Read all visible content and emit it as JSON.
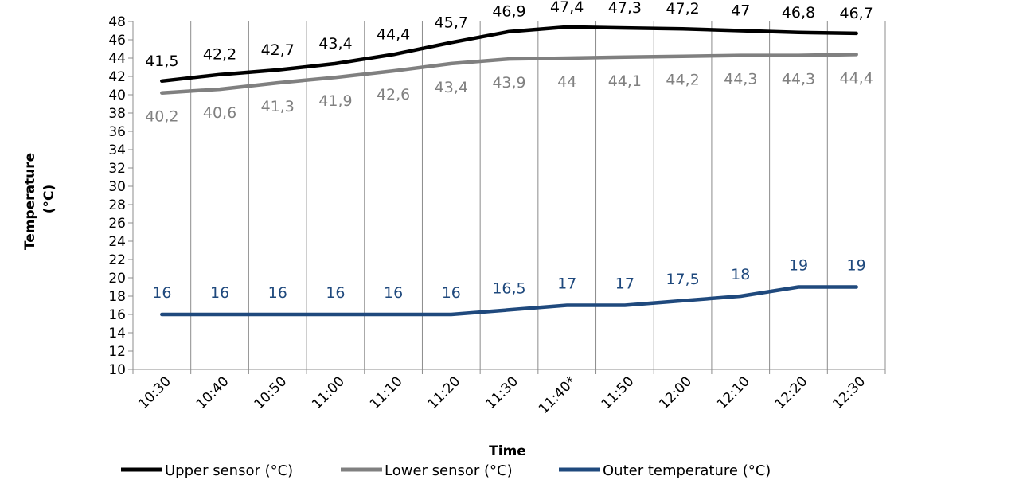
{
  "chart_data": {
    "type": "line",
    "title": "",
    "xlabel": "Time",
    "ylabel": "Temperature (°C)",
    "ylabel_lines": [
      "Temperature",
      "(°C)"
    ],
    "ylim": [
      10,
      48
    ],
    "ytick_step": 2,
    "grid": "vertical lines between categories",
    "legend_position": "bottom",
    "categories": [
      "10:30",
      "10:40",
      "10:50",
      "11:00",
      "11:10",
      "11:20",
      "11:30",
      "11:40*",
      "11:50",
      "12:00",
      "12:10",
      "12:20",
      "12:30"
    ],
    "series": [
      {
        "name": "Upper sensor (°C)",
        "color": "#000000",
        "values": [
          41.5,
          42.2,
          42.7,
          43.4,
          44.4,
          45.7,
          46.9,
          47.4,
          47.3,
          47.2,
          47.0,
          46.8,
          46.7
        ],
        "labels": [
          "41,5",
          "42,2",
          "42,7",
          "43,4",
          "44,4",
          "45,7",
          "46,9",
          "47,4",
          "47,3",
          "47,2",
          "47",
          "46,8",
          "46,7"
        ]
      },
      {
        "name": "Lower sensor (°C)",
        "color": "#808080",
        "values": [
          40.2,
          40.6,
          41.3,
          41.9,
          42.6,
          43.4,
          43.9,
          44.0,
          44.1,
          44.2,
          44.3,
          44.3,
          44.4
        ],
        "labels": [
          "40,2",
          "40,6",
          "41,3",
          "41,9",
          "42,6",
          "43,4",
          "43,9",
          "44",
          "44,1",
          "44,2",
          "44,3",
          "44,3",
          "44,4"
        ]
      },
      {
        "name": "Outer temperature (°C)",
        "color": "#1f497d",
        "values": [
          16,
          16,
          16,
          16,
          16,
          16,
          16.5,
          17,
          17,
          17.5,
          18,
          19,
          19
        ],
        "labels": [
          "16",
          "16",
          "16",
          "16",
          "16",
          "16",
          "16,5",
          "17",
          "17",
          "17,5",
          "18",
          "19",
          "19"
        ]
      }
    ]
  }
}
